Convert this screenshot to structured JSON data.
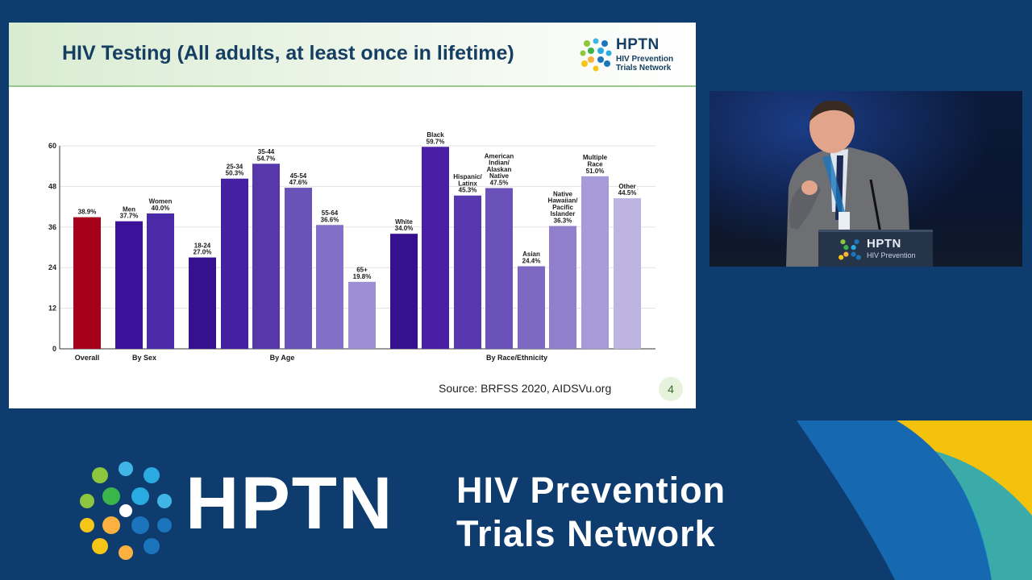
{
  "slide": {
    "title": "HIV Testing (All adults, at least once in lifetime)",
    "source": "Source: BRFSS 2020, AIDSVu.org",
    "page_number": "4"
  },
  "logo": {
    "name": "HPTN",
    "subtitle": "HIV Prevention Trials Network"
  },
  "podium": {
    "name": "HPTN",
    "subtitle": "HIV Prevention"
  },
  "banner": {
    "name": "HPTN",
    "subtitle_line1": "HIV Prevention",
    "subtitle_line2": "Trials Network"
  },
  "colors": {
    "background": "#0e3c6e",
    "overall_bar": "#a6001a",
    "title": "#153e62"
  },
  "chart_data": {
    "type": "bar",
    "ylim": [
      0,
      60
    ],
    "yticks": [
      0,
      12,
      24,
      36,
      48,
      60
    ],
    "grid": true,
    "bars": [
      {
        "label": "",
        "value_label": "38.9%",
        "value": 38.9,
        "group": "Overall",
        "color": "#a6001a"
      },
      {
        "label": "Men",
        "value_label": "37.7%",
        "value": 37.7,
        "group": "By Sex",
        "color": "#3a129a"
      },
      {
        "label": "Women",
        "value_label": "40.0%",
        "value": 40.0,
        "group": "By Sex",
        "color": "#4a2aa6"
      },
      {
        "label": "18-24",
        "value_label": "27.0%",
        "value": 27.0,
        "group": "By Age",
        "color": "#35108f"
      },
      {
        "label": "25-34",
        "value_label": "50.3%",
        "value": 50.3,
        "group": "By Age",
        "color": "#4520a0"
      },
      {
        "label": "35-44",
        "value_label": "54.7%",
        "value": 54.7,
        "group": "By Age",
        "color": "#5638ab"
      },
      {
        "label": "45-54",
        "value_label": "47.6%",
        "value": 47.6,
        "group": "By Age",
        "color": "#6a52b8"
      },
      {
        "label": "55-64",
        "value_label": "36.6%",
        "value": 36.6,
        "group": "By Age",
        "color": "#8270c6"
      },
      {
        "label": "65+",
        "value_label": "19.8%",
        "value": 19.8,
        "group": "By Age",
        "color": "#9d8fd4"
      },
      {
        "label": "White",
        "value_label": "34.0%",
        "value": 34.0,
        "group": "By Race/Ethnicity",
        "color": "#35108f"
      },
      {
        "label": "Black",
        "value_label": "59.7%",
        "value": 59.7,
        "group": "By Race/Ethnicity",
        "color": "#4a1fa6"
      },
      {
        "label": "Hispanic/ Latinx",
        "value_label": "45.3%",
        "value": 45.3,
        "group": "By Race/Ethnicity",
        "color": "#5838ae"
      },
      {
        "label": "American Indian/ Alaskan Native",
        "value_label": "47.5%",
        "value": 47.5,
        "group": "By Race/Ethnicity",
        "color": "#6a52b8"
      },
      {
        "label": "Asian",
        "value_label": "24.4%",
        "value": 24.4,
        "group": "By Race/Ethnicity",
        "color": "#7d68c2"
      },
      {
        "label": "Native Hawaiian/ Pacific Islander",
        "value_label": "36.3%",
        "value": 36.3,
        "group": "By Race/Ethnicity",
        "color": "#9080cc"
      },
      {
        "label": "Multiple Race",
        "value_label": "51.0%",
        "value": 51.0,
        "group": "By Race/Ethnicity",
        "color": "#a79ad8"
      },
      {
        "label": "Other",
        "value_label": "44.5%",
        "value": 44.5,
        "group": "By Race/Ethnicity",
        "color": "#bdb4e2"
      }
    ],
    "groups": [
      "Overall",
      "By Sex",
      "By Age",
      "By Race/Ethnicity"
    ]
  }
}
